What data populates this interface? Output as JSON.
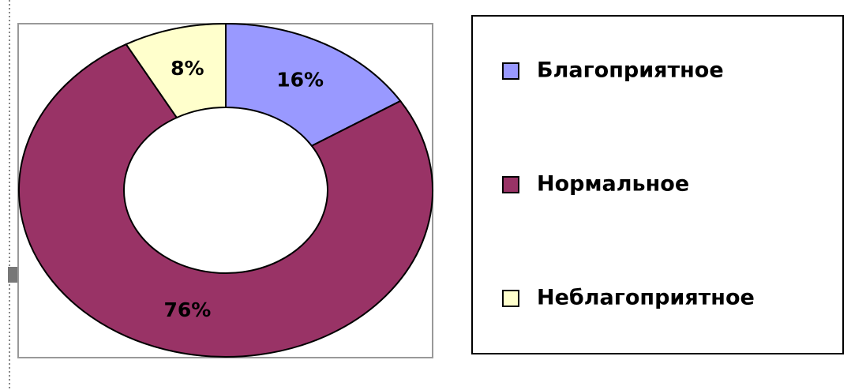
{
  "chart_data": {
    "type": "donut",
    "categories": [
      "Благоприятное",
      "Нормальное",
      "Неблагоприятное"
    ],
    "values": [
      16,
      76,
      8
    ],
    "value_labels": [
      "16%",
      "76%",
      "8%"
    ],
    "colors": [
      "#9999ff",
      "#993366",
      "#ffffcc"
    ]
  }
}
